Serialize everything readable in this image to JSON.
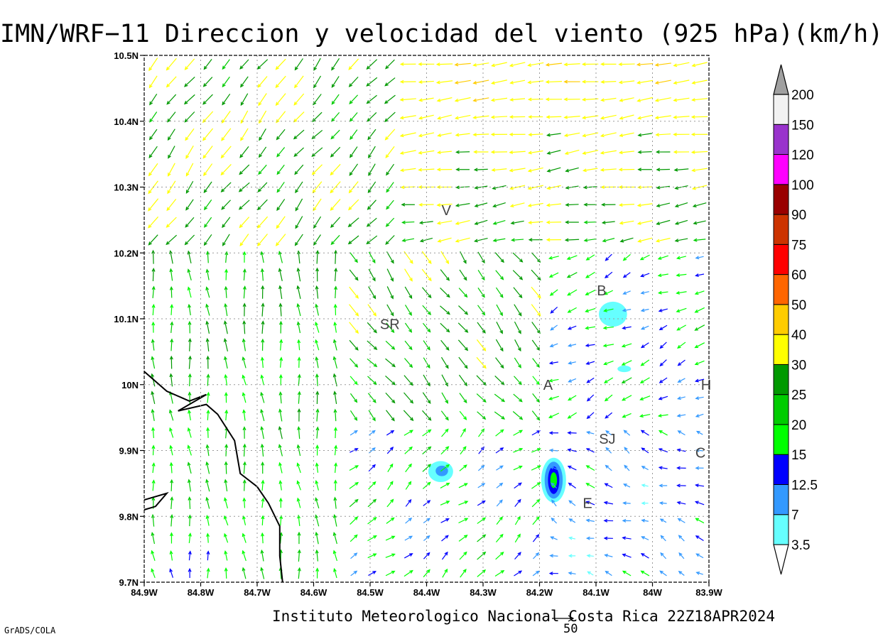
{
  "title": "IMN/WRF−11 Direccion y velocidad del viento (925 hPa)(km/h)",
  "credit": "Instituto Meteorologico Nacional Costa Rica 22Z18APR2024",
  "software": "GrADS/COLA",
  "reference_vector": {
    "label": "50",
    "units": "km/h"
  },
  "map": {
    "lon_range": [
      -84.9,
      -83.9
    ],
    "lat_range": [
      9.7,
      10.5
    ],
    "x_ticks": [
      "84.9W",
      "84.8W",
      "84.7W",
      "84.6W",
      "84.5W",
      "84.4W",
      "84.3W",
      "84.2W",
      "84.1W",
      "84W",
      "83.9W"
    ],
    "y_ticks": [
      "10.5N",
      "10.4N",
      "10.3N",
      "10.2N",
      "10.1N",
      "10N",
      "9.9N",
      "9.8N",
      "9.7N"
    ],
    "grid": true,
    "coastline": [
      [
        -84.9,
        10.02
      ],
      [
        -84.86,
        9.99
      ],
      [
        -84.82,
        9.975
      ],
      [
        -84.79,
        9.985
      ],
      [
        -84.84,
        9.96
      ],
      [
        -84.79,
        9.97
      ],
      [
        -84.77,
        9.955
      ],
      [
        -84.74,
        9.915
      ],
      [
        -84.73,
        9.865
      ],
      [
        -84.7,
        9.845
      ],
      [
        -84.68,
        9.82
      ],
      [
        -84.66,
        9.785
      ],
      [
        -84.66,
        9.74
      ],
      [
        -84.655,
        9.7
      ]
    ],
    "coastline_west": [
      [
        -84.9,
        9.825
      ],
      [
        -84.86,
        9.835
      ],
      [
        -84.88,
        9.815
      ],
      [
        -84.9,
        9.81
      ]
    ],
    "places": [
      {
        "name": "V",
        "lon": -84.365,
        "lat": 10.265
      },
      {
        "name": "SR",
        "lon": -84.465,
        "lat": 10.092
      },
      {
        "name": "B",
        "lon": -84.09,
        "lat": 10.143
      },
      {
        "name": "A",
        "lon": -84.185,
        "lat": 10.0
      },
      {
        "name": "SJ",
        "lon": -84.08,
        "lat": 9.918
      },
      {
        "name": "C",
        "lon": -83.915,
        "lat": 9.897
      },
      {
        "name": "E",
        "lon": -84.115,
        "lat": 9.82
      },
      {
        "name": "H",
        "lon": -83.905,
        "lat": 10.0
      }
    ],
    "speed_features": [
      {
        "lon": -84.375,
        "lat": 9.868,
        "level": "3.5",
        "rx": 0.022,
        "ry": 0.016
      },
      {
        "lon": -84.373,
        "lat": 9.869,
        "level": "7",
        "rx": 0.011,
        "ry": 0.008
      },
      {
        "lon": -84.175,
        "lat": 9.855,
        "level": "3.5",
        "rx": 0.022,
        "ry": 0.034
      },
      {
        "lon": -84.175,
        "lat": 9.855,
        "level": "7",
        "rx": 0.016,
        "ry": 0.028
      },
      {
        "lon": -84.175,
        "lat": 9.855,
        "level": "12.5",
        "rx": 0.01,
        "ry": 0.021
      },
      {
        "lon": -84.175,
        "lat": 9.855,
        "level": "15",
        "rx": 0.006,
        "ry": 0.012
      },
      {
        "lon": -84.07,
        "lat": 10.107,
        "level": "3.5",
        "rx": 0.025,
        "ry": 0.019
      },
      {
        "lon": -84.05,
        "lat": 10.024,
        "level": "3.5",
        "rx": 0.012,
        "ry": 0.005
      }
    ]
  },
  "legend": {
    "levels": [
      "3.5",
      "7",
      "12.5",
      "15",
      "20",
      "25",
      "30",
      "40",
      "50",
      "60",
      "75",
      "90",
      "100",
      "120",
      "150",
      "200"
    ],
    "colors": [
      "#ffffff",
      "#66ffff",
      "#3399ff",
      "#0000ff",
      "#00ff00",
      "#00cc00",
      "#009900",
      "#ffff00",
      "#ffcc00",
      "#ff6600",
      "#ff0000",
      "#cc3300",
      "#990000",
      "#ff00ff",
      "#9933cc",
      "#f2f2f2",
      "#a0a0a0"
    ]
  },
  "colors": {
    "background": "#ffffff",
    "grid": "#999999",
    "text": "#000000"
  }
}
